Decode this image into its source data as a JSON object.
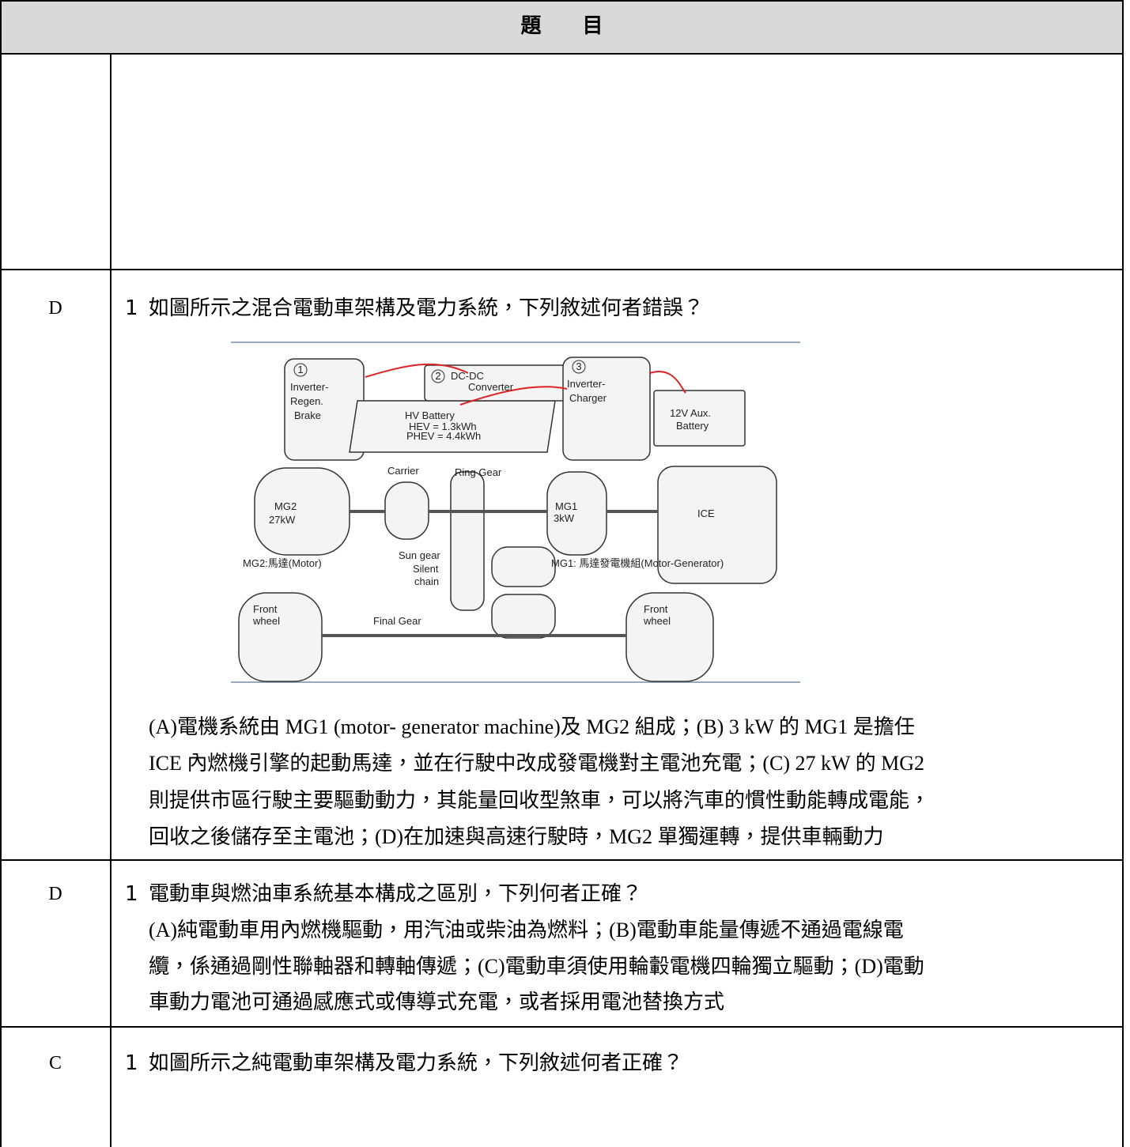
{
  "header": {
    "title": "題　　目"
  },
  "rows": [
    {
      "answer": "D",
      "number": "1",
      "question": "如圖所示之混合電動車架構及電力系統，下列敘述何者錯誤？",
      "diagram": {
        "circle_1": "1",
        "inverter_regen": [
          "Inverter-",
          "Regen.",
          "Brake"
        ],
        "circle_2": "2",
        "dc_dc": [
          "DC-DC",
          "Converter"
        ],
        "hv_battery": "HV Battery",
        "hev": "HEV = 1.3kWh",
        "phev": "PHEV = 4.4kWh",
        "circle_3": "3",
        "inverter_charger": [
          "Inverter-",
          "Charger"
        ],
        "aux_battery": [
          "12V Aux.",
          "Battery"
        ],
        "carrier": "Carrier",
        "ring_gear": "Ring Gear",
        "mg2": [
          "MG2",
          "27kW"
        ],
        "mg1": [
          "MG1",
          "3kW"
        ],
        "ice": "ICE",
        "mg2_caption": "MG2:馬達(Motor)",
        "sun_gear": "Sun gear",
        "silent_chain": [
          "Silent",
          "chain"
        ],
        "mg1_caption": "MG1: 馬達發電機組(Motor-Generator)",
        "front_wheel_left": [
          "Front",
          "wheel"
        ],
        "final_gear": "Final Gear",
        "front_wheel_right": [
          "Front",
          "wheel"
        ]
      },
      "options": [
        "(A)電機系統由 MG1 (motor- generator machine)及 MG2 組成；(B) 3 kW 的 MG1 是擔任",
        "ICE 內燃機引擎的起動馬達，並在行駛中改成發電機對主電池充電；(C) 27 kW 的 MG2",
        "則提供市區行駛主要驅動動力，其能量回收型煞車，可以將汽車的慣性動能轉成電能，",
        "回收之後儲存至主電池；(D)在加速與高速行駛時，MG2 單獨運轉，提供車輛動力"
      ]
    },
    {
      "answer": "D",
      "number": "1",
      "question": "電動車與燃油車系統基本構成之區別，下列何者正確？",
      "options": [
        "(A)純電動車用內燃機驅動，用汽油或柴油為燃料；(B)電動車能量傳遞不通過電線電",
        "纜，係通過剛性聯軸器和轉軸傳遞；(C)電動車須使用輪轂電機四輪獨立驅動；(D)電動",
        "車動力電池可通過感應式或傳導式充電，或者採用電池替換方式"
      ]
    },
    {
      "answer": "C",
      "number": "1",
      "question": "如圖所示之純電動車架構及電力系統，下列敘述何者正確？"
    }
  ]
}
